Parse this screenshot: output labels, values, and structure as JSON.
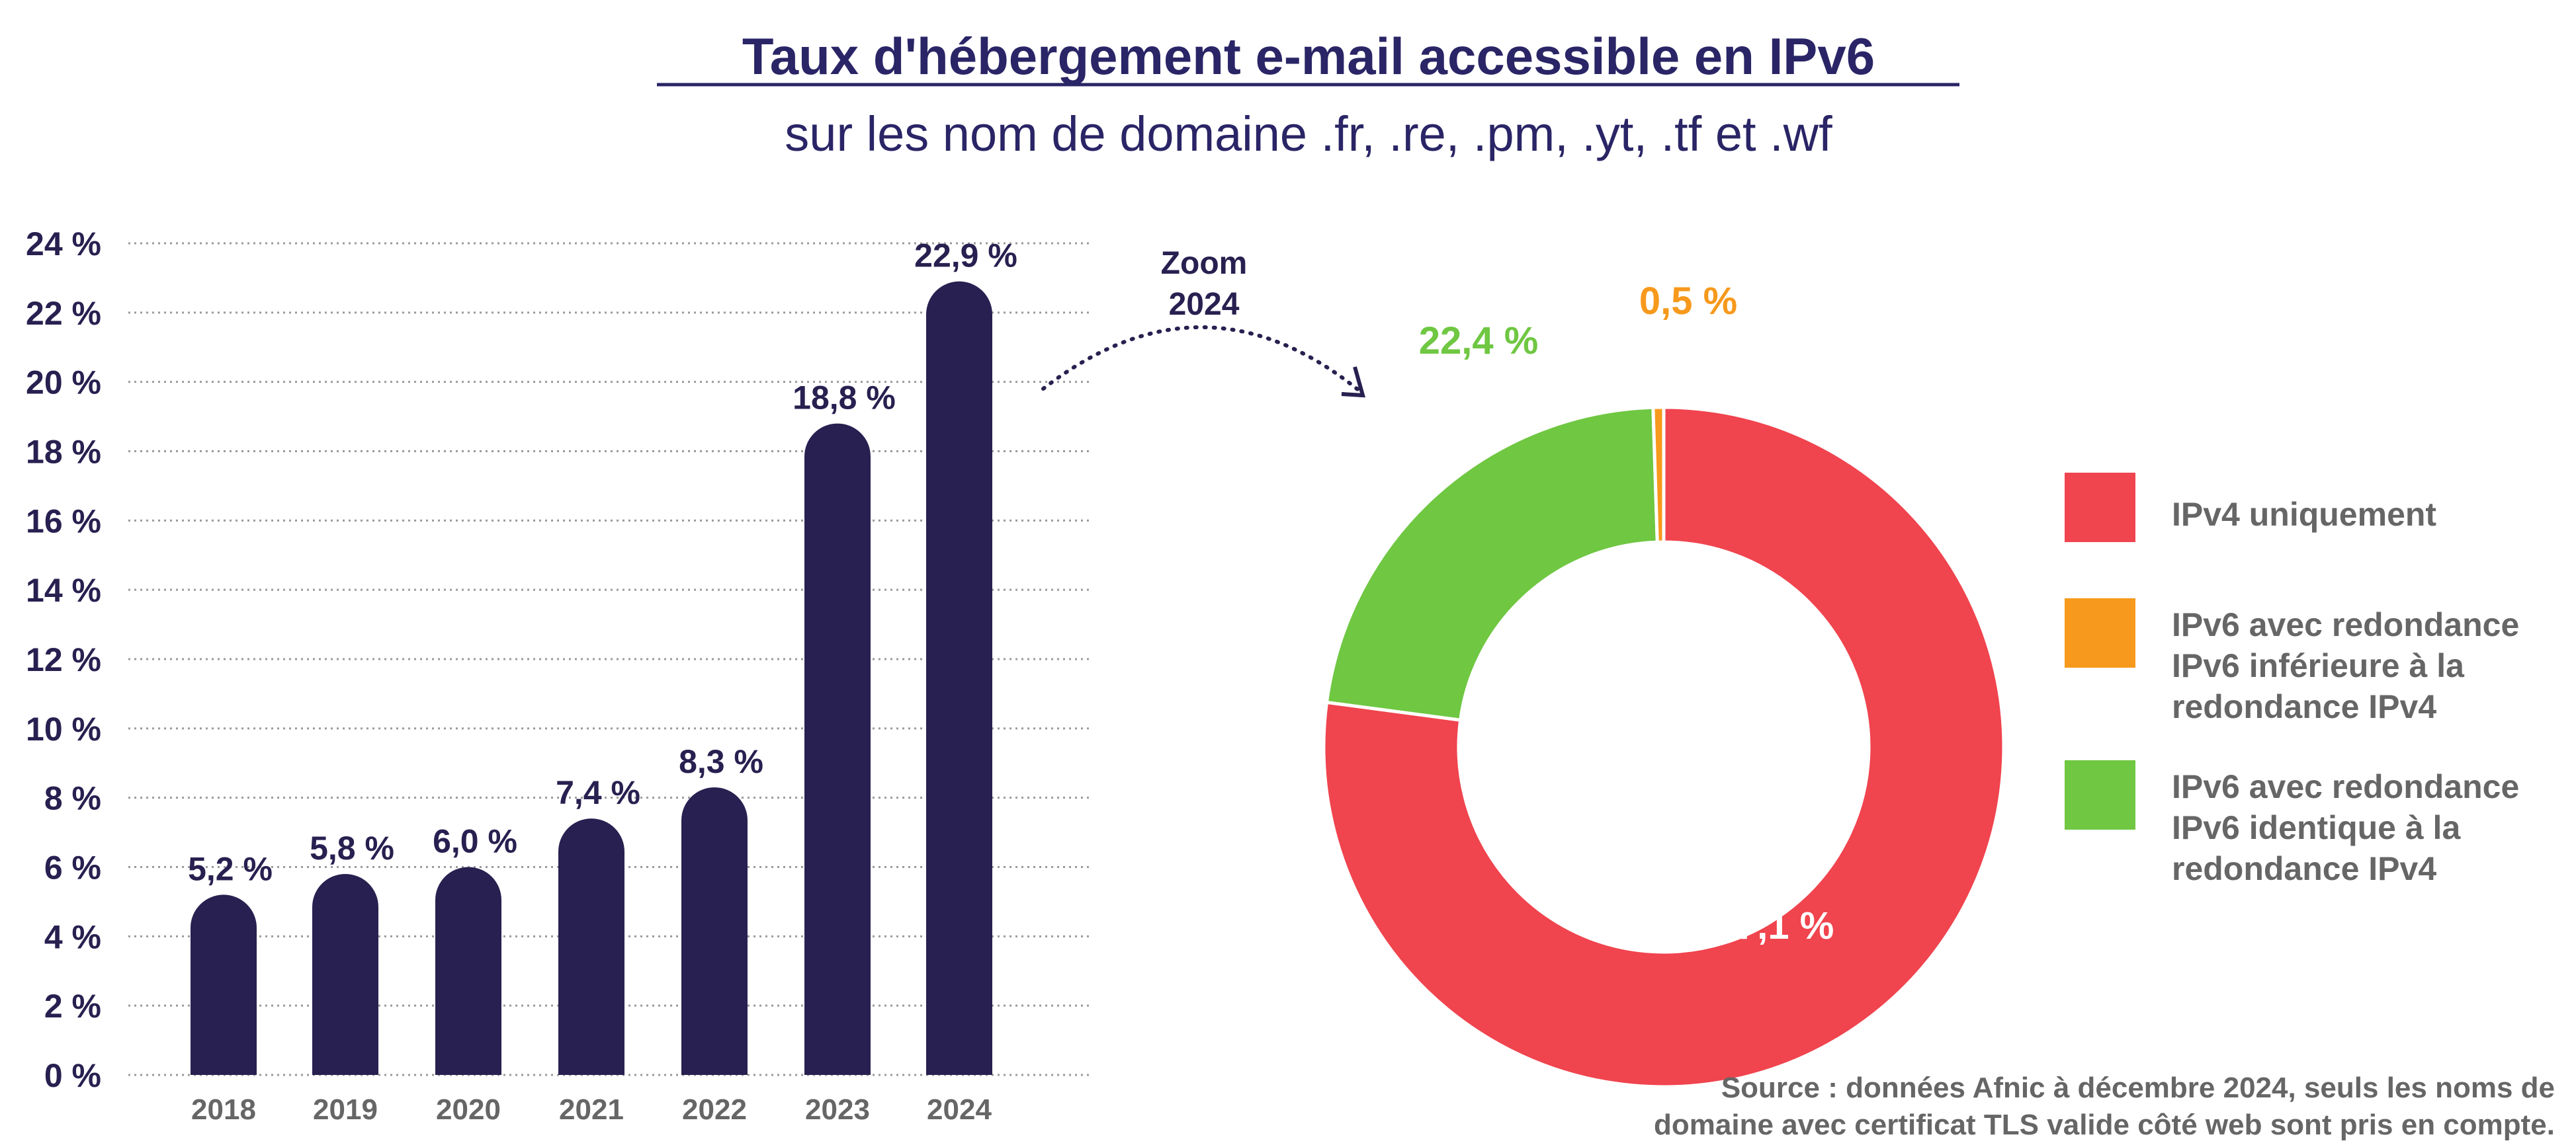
{
  "title": "Taux d'hébergement e-mail accessible en IPv6",
  "subtitle": "sur les nom de domaine .fr, .re, .pm, .yt, .tf et .wf",
  "colors": {
    "bar": "#282050",
    "title": "#2a2566",
    "ipv4_only": "#f0444e",
    "ipv6_lower": "#f7991c",
    "ipv6_same": "#6fc742",
    "grid": "#9a9a9a",
    "muted_text": "#666666"
  },
  "chart_data": [
    {
      "type": "bar",
      "categories": [
        "2018",
        "2019",
        "2020",
        "2021",
        "2022",
        "2023",
        "2024"
      ],
      "values": [
        5.2,
        5.8,
        6.0,
        7.4,
        8.3,
        18.8,
        22.9
      ],
      "data_labels": [
        "5,2 %",
        "5,8 %",
        "6,0 %",
        "7,4 %",
        "8,3 %",
        "18,8 %",
        "22,9 %"
      ],
      "ylim": [
        0,
        24
      ],
      "yticks": [
        0,
        2,
        4,
        6,
        8,
        10,
        12,
        14,
        16,
        18,
        20,
        22,
        24
      ],
      "ytick_labels": [
        "0 %",
        "2 %",
        "4 %",
        "6 %",
        "8 %",
        "10 %",
        "12 %",
        "14 %",
        "16 %",
        "18 %",
        "20 %",
        "22 %",
        "24 %"
      ],
      "grid": "horizontal dotted",
      "bar_shape": "rounded top"
    },
    {
      "type": "pie",
      "style": "donut",
      "annotation": [
        "Zoom",
        "2024"
      ],
      "slices": [
        {
          "name": "IPv4 uniquement",
          "value": 77.1,
          "label": "77,1 %",
          "color": "#f0444e"
        },
        {
          "name": "IPv6 avec redondance IPv6 identique à la redondance IPv4",
          "value": 22.4,
          "label": "22,4 %",
          "color": "#6fc742"
        },
        {
          "name": "IPv6 avec redondance IPv6 inférieure à la redondance IPv4",
          "value": 0.5,
          "label": "0,5 %",
          "color": "#f7991c"
        }
      ],
      "legend_placement": "right",
      "legend": [
        {
          "lines": [
            "IPv4 uniquement"
          ],
          "color": "#f0444e"
        },
        {
          "lines": [
            "IPv6 avec redondance",
            "IPv6 inférieure à la",
            "redondance IPv4"
          ],
          "color": "#f7991c"
        },
        {
          "lines": [
            "IPv6 avec redondance",
            "IPv6 identique à la",
            "redondance IPv4"
          ],
          "color": "#6fc742"
        }
      ]
    }
  ],
  "source": [
    "Source : données Afnic à décembre 2024, seuls les noms de",
    "domaine avec certificat TLS valide côté web sont pris en compte."
  ]
}
